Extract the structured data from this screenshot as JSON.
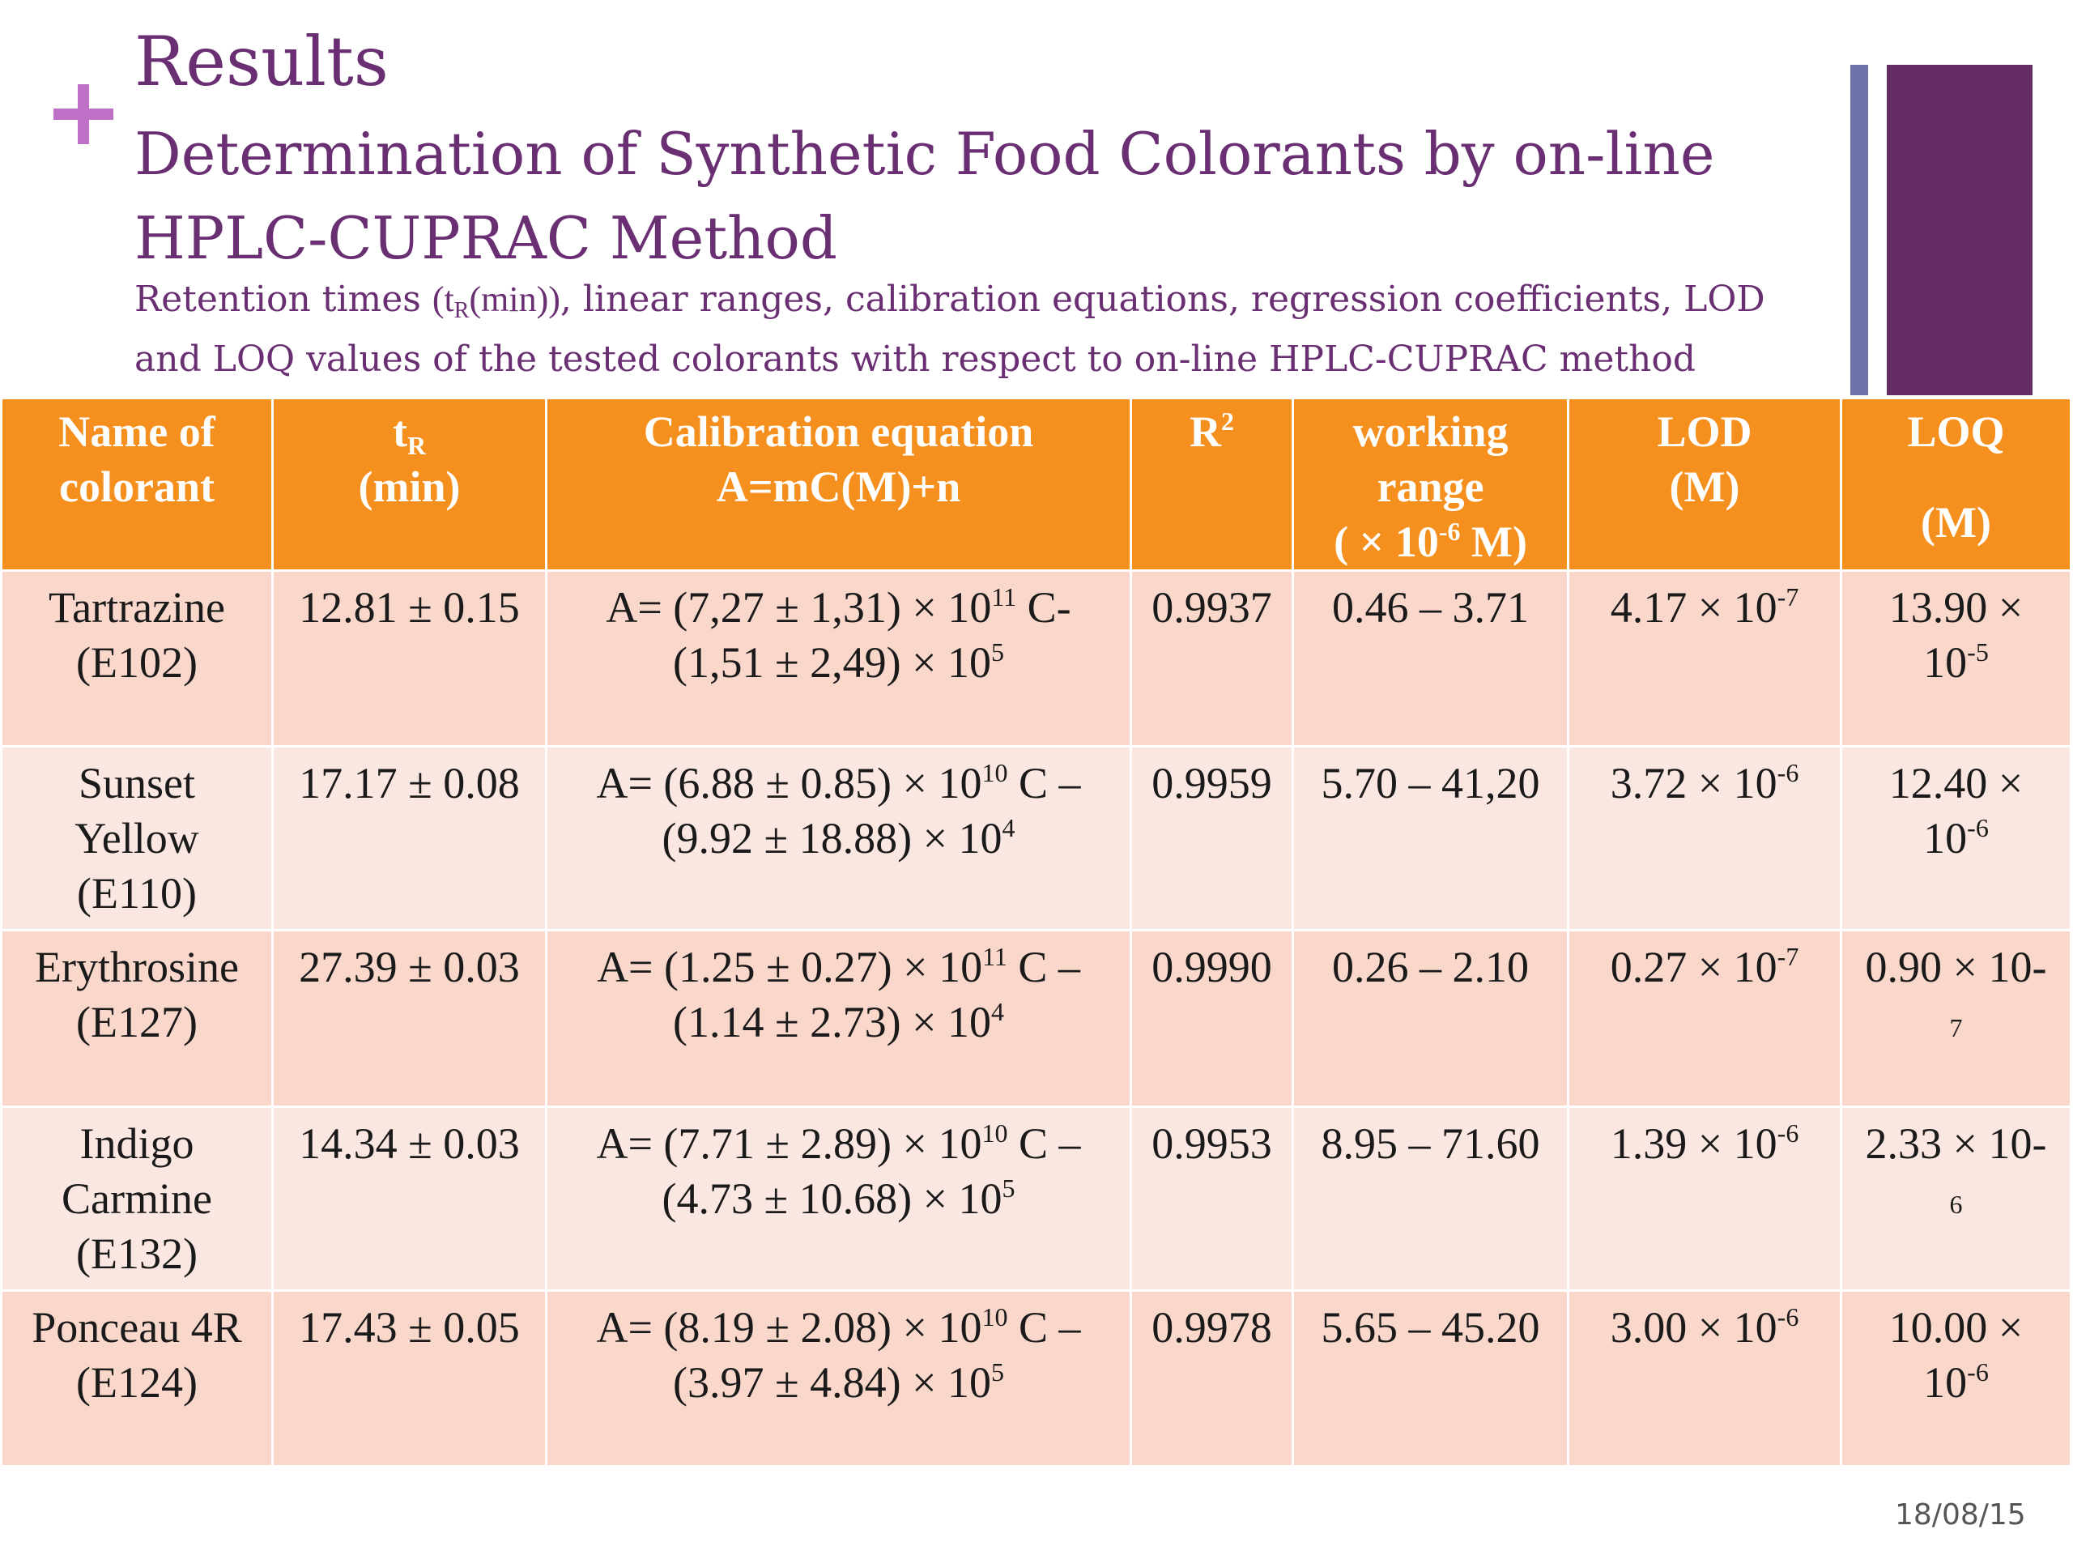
{
  "slide": {
    "title": "Results",
    "subtitle": "Determination of Synthetic Food Colorants by on-line HPLC-CUPRAC Method",
    "caption_pre": "Retention times ",
    "caption_tr_open": "(t",
    "caption_tr_sub": "R",
    "caption_tr_close": "(min))",
    "caption_post": ", linear ranges, calibration equations, regression coefficients, LOD and LOQ values of the tested colorants with respect to on-line HPLC-CUPRAC method",
    "date": "18/08/15"
  },
  "table": {
    "headers": {
      "name_l1": "Name of",
      "name_l2": "colorant",
      "tr_main": "t",
      "tr_sub": "R",
      "tr_l2": "(min)",
      "cal_l1": "Calibration equation",
      "cal_l2": "A=mC(M)+n",
      "r2_main": "R",
      "r2_sup": "2",
      "wr_l1": "working",
      "wr_l2": "range",
      "wr_l3_pre": "( × 10",
      "wr_l3_sup": "-6",
      "wr_l3_post": " M)",
      "lod_l1": "LOD",
      "lod_l2": "(M)",
      "loq_l1": "LOQ",
      "loq_l2": "(M)"
    },
    "rows": [
      {
        "name": [
          "Tartrazine",
          "(E102)"
        ],
        "tr": "12.81 ± 0.15",
        "eq1_pre": "A= (7,27 ± 1,31) × 10",
        "eq1_sup": "11",
        "eq1_post": " C-",
        "eq2_pre": "(1,51 ± 2,49) × 10",
        "eq2_sup": "5",
        "r2": "0.9937",
        "range": "0.46 – 3.71",
        "lod_pre": "4.17 × 10",
        "lod_sup": "-7",
        "loq_l1": "13.90 ×",
        "loq_l2_pre": "10",
        "loq_l2_sup": "-5"
      },
      {
        "name": [
          "Sunset",
          "Yellow",
          "(E110)"
        ],
        "tr": "17.17 ± 0.08",
        "eq1_pre": "A= (6.88 ± 0.85) × 10",
        "eq1_sup": "10",
        "eq1_post": " C –",
        "eq2_pre": "(9.92 ± 18.88) × 10",
        "eq2_sup": "4",
        "r2": "0.9959",
        "range": "5.70 – 41,20",
        "lod_pre": "3.72 × 10",
        "lod_sup": "-6",
        "loq_l1": "12.40 ×",
        "loq_l2_pre": "10",
        "loq_l2_sup": "-6"
      },
      {
        "name": [
          "Erythrosine",
          "(E127)"
        ],
        "tr": "27.39 ± 0.03",
        "eq1_pre": "A= (1.25 ± 0.27) × 10",
        "eq1_sup": "11",
        "eq1_post": " C –",
        "eq2_pre": "(1.14 ± 2.73) × 10",
        "eq2_sup": "4",
        "r2": "0.9990",
        "range": "0.26 – 2.10",
        "lod_pre": "0.27 × 10",
        "lod_sup": "-7",
        "loq_l1": "0.90 × 10-",
        "loq_l2_pre": "7",
        "loq_l2_sup": ""
      },
      {
        "name": [
          "Indigo",
          "Carmine",
          "(E132)"
        ],
        "tr": "14.34 ± 0.03",
        "eq1_pre": "A= (7.71 ± 2.89) × 10",
        "eq1_sup": "10",
        "eq1_post": " C –",
        "eq2_pre": "(4.73 ± 10.68) × 10",
        "eq2_sup": "5",
        "r2": "0.9953",
        "range": "8.95 – 71.60",
        "lod_pre": "1.39 × 10",
        "lod_sup": "-6",
        "loq_l1": "2.33 × 10-",
        "loq_l2_pre": "6",
        "loq_l2_sup": ""
      },
      {
        "name": [
          "Ponceau 4R",
          "(E124)"
        ],
        "tr": "17.43 ± 0.05",
        "eq1_pre": "A= (8.19 ± 2.08) × 10",
        "eq1_sup": "10",
        "eq1_post": " C –",
        "eq2_pre": "(3.97 ± 4.84) × 10",
        "eq2_sup": "5",
        "r2": "0.9978",
        "range": "5.65 – 45.20",
        "lod_pre": "3.00 × 10",
        "lod_sup": "-6",
        "loq_l1": "10.00 ×",
        "loq_l2_pre": "10",
        "loq_l2_sup": "-6"
      }
    ]
  }
}
